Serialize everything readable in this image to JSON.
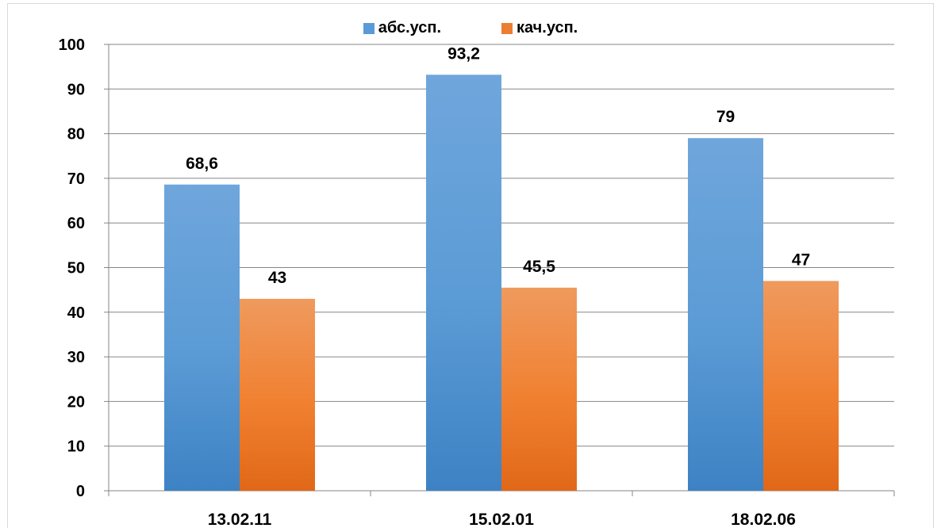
{
  "chart_data": {
    "type": "bar",
    "title": "",
    "xlabel": "",
    "ylabel": "",
    "categories": [
      "13.02.11",
      "15.02.01",
      "18.02.06"
    ],
    "series": [
      {
        "name": "абс.усп.",
        "values": [
          68.6,
          93.2,
          79
        ],
        "labels": [
          "68,6",
          "93,2",
          "79"
        ],
        "color": "#5b9bd5"
      },
      {
        "name": "кач.усп.",
        "values": [
          43,
          45.5,
          47
        ],
        "labels": [
          "43",
          "45,5",
          "47"
        ],
        "color": "#ed7d31"
      }
    ],
    "ylim": [
      0,
      100
    ],
    "yticks": [
      0,
      10,
      20,
      30,
      40,
      50,
      60,
      70,
      80,
      90,
      100
    ],
    "grid": true,
    "legend_position": "top-center"
  }
}
